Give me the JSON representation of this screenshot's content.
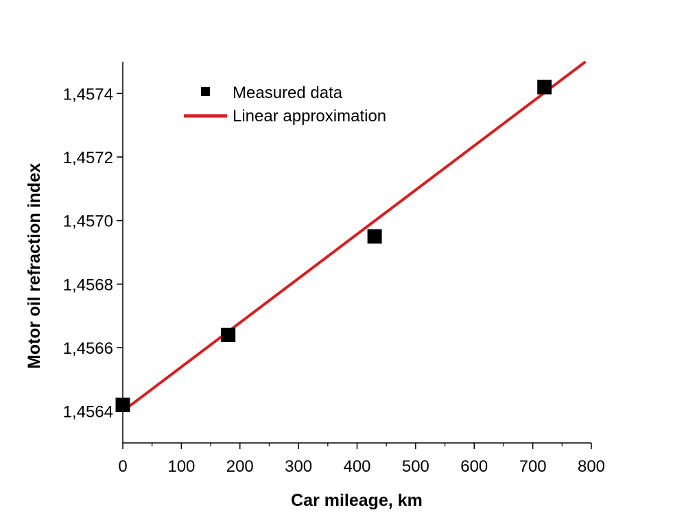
{
  "chart_data": {
    "type": "scatter",
    "title": "",
    "xlabel": "Car mileage, km",
    "ylabel": "Motor  oil refraction index",
    "xlim": [
      0,
      800
    ],
    "ylim": [
      1.4563,
      1.4575
    ],
    "x_ticks": [
      0,
      100,
      200,
      300,
      400,
      500,
      600,
      700,
      800
    ],
    "x_tick_labels": [
      "0",
      "100",
      "200",
      "300",
      "400",
      "500",
      "600",
      "700",
      "800"
    ],
    "y_ticks": [
      1.4564,
      1.4566,
      1.4568,
      1.457,
      1.4572,
      1.4574
    ],
    "y_tick_labels": [
      "1,4564",
      "1,4566",
      "1,4568",
      "1,4570",
      "1,4572",
      "1,4574"
    ],
    "grid": false,
    "legend_position": "top-left",
    "series": [
      {
        "name": "Measured data",
        "kind": "scatter",
        "color": "#000000",
        "x": [
          0,
          180,
          430,
          720
        ],
        "y": [
          1.45642,
          1.45664,
          1.45695,
          1.45742
        ]
      },
      {
        "name": "Linear approximation",
        "kind": "line",
        "color": "#d81e1e",
        "x": [
          0,
          790
        ],
        "y": [
          1.4564,
          1.4575
        ]
      }
    ]
  }
}
